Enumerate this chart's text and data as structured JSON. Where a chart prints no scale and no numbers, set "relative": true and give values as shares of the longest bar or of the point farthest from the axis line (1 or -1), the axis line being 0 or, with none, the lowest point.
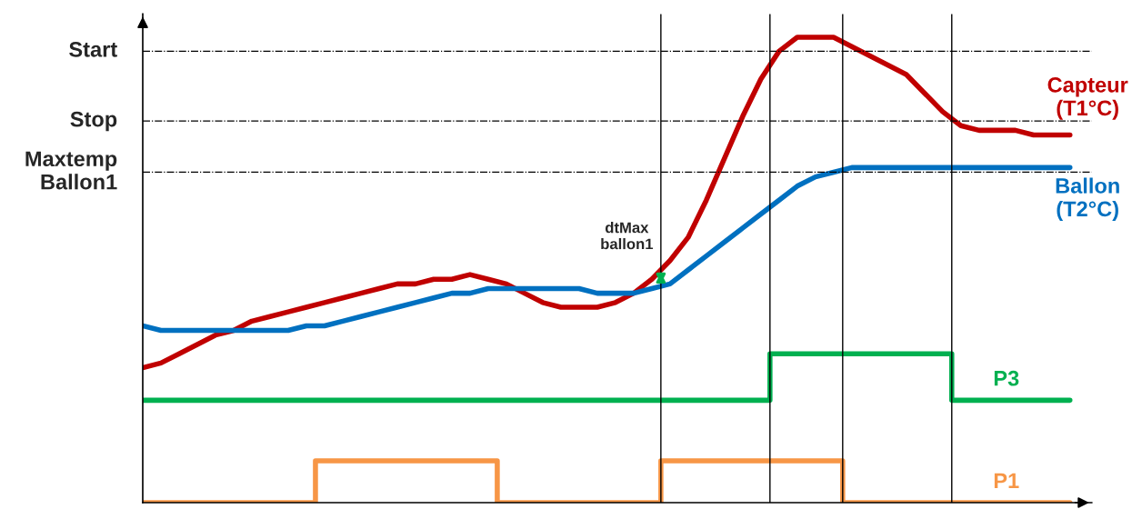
{
  "chart_data": {
    "type": "line",
    "relative": true,
    "legend": false,
    "marker": "none",
    "categories": [
      null,
      null,
      null,
      null,
      null,
      null,
      null,
      null,
      null,
      null,
      null,
      null,
      null,
      null,
      null,
      null,
      null,
      null,
      null,
      null,
      null,
      null,
      null,
      null,
      null,
      null,
      null,
      null,
      null,
      null,
      null,
      null,
      null,
      null,
      null,
      null,
      null,
      null,
      null,
      null,
      null,
      null,
      null,
      null,
      null,
      null,
      null,
      null,
      null,
      null,
      null,
      null
    ],
    "series": [
      {
        "name": "Capteur\n(T1°C)",
        "color": "#c00000",
        "values": [
          0.29,
          0.3,
          0.32,
          0.34,
          0.36,
          0.37,
          0.39,
          0.4,
          0.41,
          0.42,
          0.43,
          0.44,
          0.45,
          0.46,
          0.47,
          0.47,
          0.48,
          0.48,
          0.49,
          0.48,
          0.47,
          0.45,
          0.43,
          0.42,
          0.42,
          0.42,
          0.43,
          0.45,
          0.48,
          0.52,
          0.57,
          0.65,
          0.74,
          0.83,
          0.91,
          0.97,
          1.0,
          1.0,
          1.0,
          0.98,
          0.96,
          0.94,
          0.92,
          0.88,
          0.84,
          0.81,
          0.8,
          0.8,
          0.8,
          0.79,
          0.79,
          0.79
        ]
      },
      {
        "name": "Ballon\n(T2°C)",
        "color": "#0070c0",
        "values": [
          0.38,
          0.37,
          0.37,
          0.37,
          0.37,
          0.37,
          0.37,
          0.37,
          0.37,
          0.38,
          0.38,
          0.39,
          0.4,
          0.41,
          0.42,
          0.43,
          0.44,
          0.45,
          0.45,
          0.46,
          0.46,
          0.46,
          0.46,
          0.46,
          0.46,
          0.45,
          0.45,
          0.45,
          0.46,
          0.47,
          0.5,
          0.53,
          0.56,
          0.59,
          0.62,
          0.65,
          0.68,
          0.7,
          0.71,
          0.72,
          0.72,
          0.72,
          0.72,
          0.72,
          0.72,
          0.72,
          0.72,
          0.72,
          0.72,
          0.72,
          0.72,
          0.72
        ]
      },
      {
        "name": "P3",
        "type": "step",
        "color": "#00b050",
        "values": [
          0.22,
          0.22,
          0.22,
          0.22,
          0.22,
          0.22,
          0.22,
          0.22,
          0.22,
          0.22,
          0.22,
          0.22,
          0.22,
          0.22,
          0.22,
          0.22,
          0.22,
          0.22,
          0.22,
          0.22,
          0.22,
          0.22,
          0.22,
          0.22,
          0.22,
          0.22,
          0.22,
          0.22,
          0.22,
          0.22,
          0.22,
          0.22,
          0.22,
          0.22,
          0.22,
          0.32,
          0.32,
          0.32,
          0.32,
          0.32,
          0.32,
          0.32,
          0.32,
          0.32,
          0.32,
          0.22,
          0.22,
          0.22,
          0.22,
          0.22,
          0.22,
          0.22
        ]
      },
      {
        "name": "P1",
        "type": "step",
        "color": "#f79646",
        "values": [
          0,
          0,
          0,
          0,
          0,
          0,
          0,
          0,
          0,
          0,
          0.09,
          0.09,
          0.09,
          0.09,
          0.09,
          0.09,
          0.09,
          0.09,
          0.09,
          0.09,
          0,
          0,
          0,
          0,
          0,
          0,
          0,
          0,
          0,
          0.09,
          0.09,
          0.09,
          0.09,
          0.09,
          0.09,
          0.09,
          0.09,
          0.09,
          0.09,
          0,
          0,
          0,
          0,
          0,
          0,
          0,
          0,
          0,
          0,
          0,
          0,
          0
        ]
      }
    ],
    "ref_lines": [
      {
        "axis": "y",
        "value": 0.97,
        "label": "Start",
        "color": "#000000",
        "line_style": "dashdot"
      },
      {
        "axis": "y",
        "value": 0.82,
        "label": "Stop",
        "color": "#000000",
        "line_style": "dashdot"
      },
      {
        "axis": "y",
        "value": 0.71,
        "label": "Maxtemp\nBallon1",
        "color": "#000000",
        "line_style": "dashdot"
      }
    ],
    "annotations": [
      "dtMax\nballon1"
    ]
  }
}
